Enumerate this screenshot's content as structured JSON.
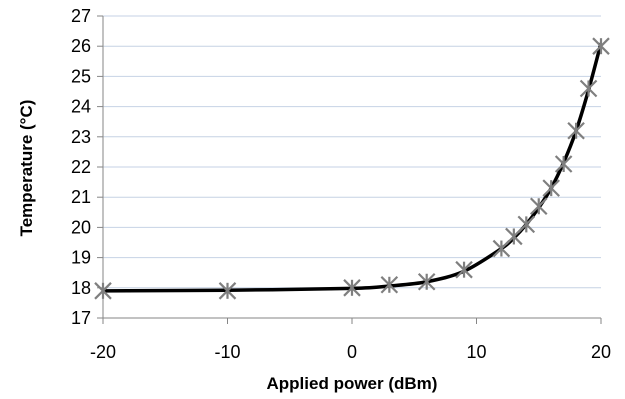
{
  "chart_data": {
    "type": "scatter",
    "title": "",
    "xlabel": "Applied power (dBm)",
    "ylabel": "Temperature (°C)",
    "xlim": [
      -20,
      20
    ],
    "ylim": [
      17,
      27
    ],
    "xticks": [
      -20,
      -10,
      0,
      10,
      20
    ],
    "yticks": [
      17,
      18,
      19,
      20,
      21,
      22,
      23,
      24,
      25,
      26,
      27
    ],
    "grid": "horizontal",
    "legend": "none",
    "colors": {
      "grid": "#c6d2e4",
      "axis": "#868686",
      "line": "#000000",
      "marker": "#7f7f7f"
    },
    "series": [
      {
        "marker": "star",
        "x": [
          -20,
          -10,
          0,
          3,
          6,
          9,
          12,
          13,
          14,
          15,
          16,
          17,
          18,
          19,
          20
        ],
        "y": [
          17.9,
          17.9,
          18.0,
          18.1,
          18.2,
          18.6,
          19.3,
          19.7,
          20.1,
          20.7,
          21.3,
          22.1,
          23.2,
          24.6,
          26.0
        ]
      }
    ],
    "fit_line": {
      "x": [
        -20,
        -10,
        0,
        3,
        6,
        9,
        12,
        13,
        14,
        15,
        16,
        17,
        18,
        19,
        20
      ],
      "y": [
        17.9,
        17.92,
        17.98,
        18.06,
        18.2,
        18.55,
        19.3,
        19.65,
        20.1,
        20.65,
        21.3,
        22.15,
        23.2,
        24.55,
        26.1
      ]
    }
  }
}
